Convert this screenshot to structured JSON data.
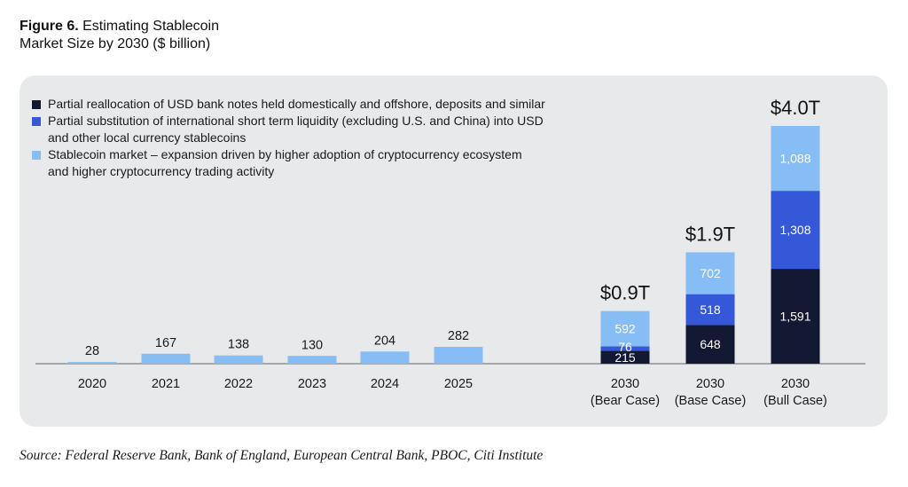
{
  "figure": {
    "label": "Figure 6.",
    "title_rest": " Estimating Stablecoin",
    "title_line2": "Market Size by 2030 ($ billion)"
  },
  "source": "Source: Federal Reserve Bank, Bank of England, European Central Bank, PBOC, Citi Institute",
  "chart_data": {
    "type": "bar",
    "stacked": true,
    "title": "Estimating Stablecoin Market Size by 2030 ($ billion)",
    "xlabel": "",
    "ylabel": "",
    "ylim": [
      0,
      4000
    ],
    "grid": false,
    "legend_position": "top-left",
    "categories": [
      "2020",
      "2021",
      "2022",
      "2023",
      "2024",
      "2025",
      "2030 (Bear Case)",
      "2030 (Base Case)",
      "2030 (Bull Case)"
    ],
    "category_lines": [
      [
        "2020"
      ],
      [
        "2021"
      ],
      [
        "2022"
      ],
      [
        "2023"
      ],
      [
        "2024"
      ],
      [
        "2025"
      ],
      [
        "2030",
        "(Bear Case)"
      ],
      [
        "2030",
        "(Base Case)"
      ],
      [
        "2030",
        "(Bull Case)"
      ]
    ],
    "series": [
      {
        "name": "Partial reallocation of USD bank notes held domestically and offshore, deposits and similar",
        "legend_lines": [
          "Partial reallocation of USD bank notes held domestically and offshore, deposits and similar"
        ],
        "color": "#131833",
        "values": [
          0,
          0,
          0,
          0,
          0,
          0,
          215,
          648,
          1591
        ],
        "labels": [
          "",
          "",
          "",
          "",
          "",
          "",
          "215",
          "648",
          "1,591"
        ]
      },
      {
        "name": "Partial substitution of international short term liquidity (excluding U.S. and China) into USD and other local currency stablecoins",
        "legend_lines": [
          "Partial substitution of international short term liquidity (excluding U.S. and China) into USD",
          "and other local currency stablecoins"
        ],
        "color": "#3558d9",
        "values": [
          0,
          0,
          0,
          0,
          0,
          0,
          76,
          518,
          1308
        ],
        "labels": [
          "",
          "",
          "",
          "",
          "",
          "",
          "76",
          "518",
          "1,308"
        ]
      },
      {
        "name": "Stablecoin market – expansion driven by higher adoption of cryptocurrency ecosystem and higher cryptocurrency trading activity",
        "legend_lines": [
          "Stablecoin market – expansion driven by higher adoption of cryptocurrency ecosystem",
          "and higher cryptocurrency trading activity"
        ],
        "color": "#85bdf4",
        "values": [
          28,
          167,
          138,
          130,
          204,
          282,
          592,
          702,
          1088
        ],
        "labels": [
          "28",
          "167",
          "138",
          "130",
          "204",
          "282",
          "592",
          "702",
          "1,088"
        ]
      }
    ],
    "totals_annotations": [
      "",
      "",
      "",
      "",
      "",
      "",
      "$0.9T",
      "$1.9T",
      "$4.0T"
    ]
  }
}
